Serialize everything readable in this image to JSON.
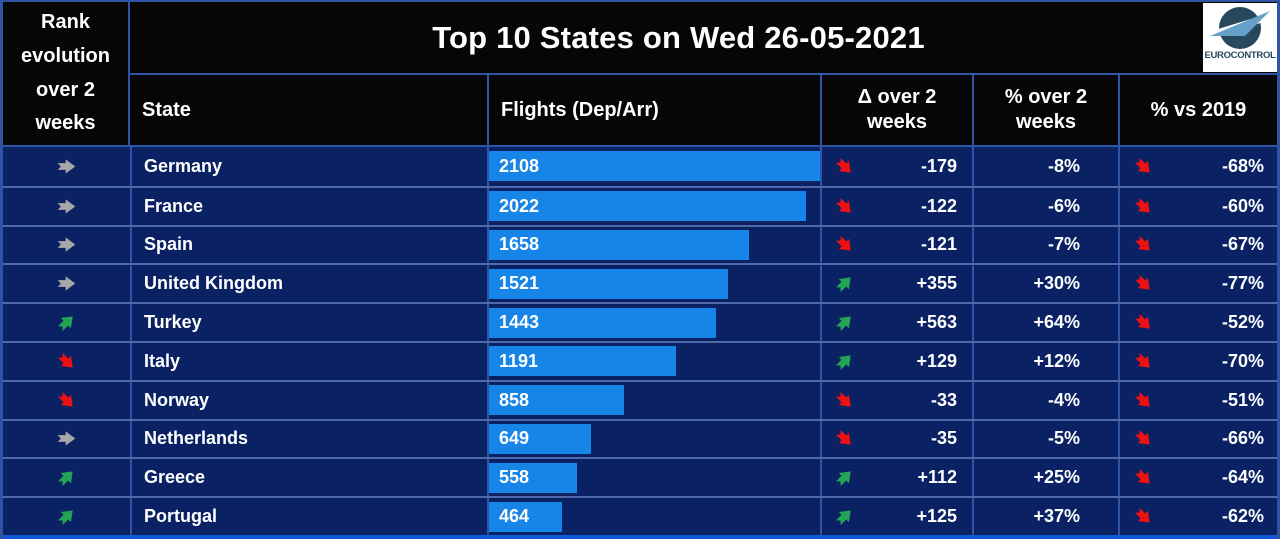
{
  "header": {
    "rank_col": "Rank\nevolution\nover 2\nweeks",
    "title": "Top 10  States on Wed 26-05-2021",
    "logo": "EUROCONTROL",
    "columns": {
      "state": "State",
      "flights": "Flights (Dep/Arr)",
      "delta": "Δ over 2\nweeks",
      "pct_2w": "% over 2\nweeks",
      "pct_2019": "% vs 2019"
    }
  },
  "colors": {
    "row_bg": "#0a2164",
    "header_bg": "#060606",
    "grid_blue": "#2e55a5",
    "row_line": "#4f69ab",
    "bar_blue": "#1784e8",
    "arrow_gray": "#a8a8a8",
    "arrow_green": "#23a455",
    "arrow_red": "#ee1111",
    "bottom_strip": "#1159d6",
    "logo_navy": "#27495e",
    "logo_light_blue": "#64a0c8"
  },
  "table": {
    "flights_max": 2108,
    "rows": [
      {
        "state": "Germany",
        "rank_dir": "same",
        "flights": 2108,
        "flights_label": "2108",
        "delta_dir": "down",
        "delta_label": "-179",
        "pct_2w": "-8%",
        "pct_2019_dir": "down",
        "pct_2019": "-68%"
      },
      {
        "state": "France",
        "rank_dir": "same",
        "flights": 2022,
        "flights_label": "2022",
        "delta_dir": "down",
        "delta_label": "-122",
        "pct_2w": "-6%",
        "pct_2019_dir": "down",
        "pct_2019": "-60%"
      },
      {
        "state": "Spain",
        "rank_dir": "same",
        "flights": 1658,
        "flights_label": "1658",
        "delta_dir": "down",
        "delta_label": "-121",
        "pct_2w": "-7%",
        "pct_2019_dir": "down",
        "pct_2019": "-67%"
      },
      {
        "state": "United Kingdom",
        "rank_dir": "same",
        "flights": 1521,
        "flights_label": "1521",
        "delta_dir": "up",
        "delta_label": "+355",
        "pct_2w": "+30%",
        "pct_2019_dir": "down",
        "pct_2019": "-77%"
      },
      {
        "state": "Turkey",
        "rank_dir": "up",
        "flights": 1443,
        "flights_label": "1443",
        "delta_dir": "up",
        "delta_label": "+563",
        "pct_2w": "+64%",
        "pct_2019_dir": "down",
        "pct_2019": "-52%"
      },
      {
        "state": "Italy",
        "rank_dir": "down",
        "flights": 1191,
        "flights_label": "1191",
        "delta_dir": "up",
        "delta_label": "+129",
        "pct_2w": "+12%",
        "pct_2019_dir": "down",
        "pct_2019": "-70%"
      },
      {
        "state": "Norway",
        "rank_dir": "down",
        "flights": 858,
        "flights_label": "858",
        "delta_dir": "down",
        "delta_label": "-33",
        "pct_2w": "-4%",
        "pct_2019_dir": "down",
        "pct_2019": "-51%"
      },
      {
        "state": "Netherlands",
        "rank_dir": "same",
        "flights": 649,
        "flights_label": "649",
        "delta_dir": "down",
        "delta_label": "-35",
        "pct_2w": "-5%",
        "pct_2019_dir": "down",
        "pct_2019": "-66%"
      },
      {
        "state": "Greece",
        "rank_dir": "up",
        "flights": 558,
        "flights_label": "558",
        "delta_dir": "up",
        "delta_label": "+112",
        "pct_2w": "+25%",
        "pct_2019_dir": "down",
        "pct_2019": "-64%"
      },
      {
        "state": "Portugal",
        "rank_dir": "up",
        "flights": 464,
        "flights_label": "464",
        "delta_dir": "up",
        "delta_label": "+125",
        "pct_2w": "+37%",
        "pct_2019_dir": "down",
        "pct_2019": "-62%"
      }
    ]
  },
  "chart_data": {
    "type": "table",
    "title": "Top 10  States on Wed 26-05-2021",
    "date": "Wed 26-05-2021",
    "columns": [
      "Rank evolution over 2 weeks",
      "State",
      "Flights (Dep/Arr)",
      "Δ over 2 weeks",
      "% over 2 weeks",
      "% vs 2019"
    ],
    "bar_column": "Flights (Dep/Arr)",
    "bar_max": 2108,
    "rows": [
      [
        "steady",
        "Germany",
        2108,
        -179,
        "-8%",
        "-68%"
      ],
      [
        "steady",
        "France",
        2022,
        -122,
        "-6%",
        "-60%"
      ],
      [
        "steady",
        "Spain",
        1658,
        -121,
        "-7%",
        "-67%"
      ],
      [
        "steady",
        "United Kingdom",
        1521,
        355,
        "+30%",
        "-77%"
      ],
      [
        "up",
        "Turkey",
        1443,
        563,
        "+64%",
        "-52%"
      ],
      [
        "down",
        "Italy",
        1191,
        129,
        "+12%",
        "-70%"
      ],
      [
        "down",
        "Norway",
        858,
        -33,
        "-4%",
        "-51%"
      ],
      [
        "steady",
        "Netherlands",
        649,
        -35,
        "-5%",
        "-66%"
      ],
      [
        "up",
        "Greece",
        558,
        112,
        "+25%",
        "-64%"
      ],
      [
        "up",
        "Portugal",
        464,
        125,
        "+37%",
        "-62%"
      ]
    ]
  }
}
